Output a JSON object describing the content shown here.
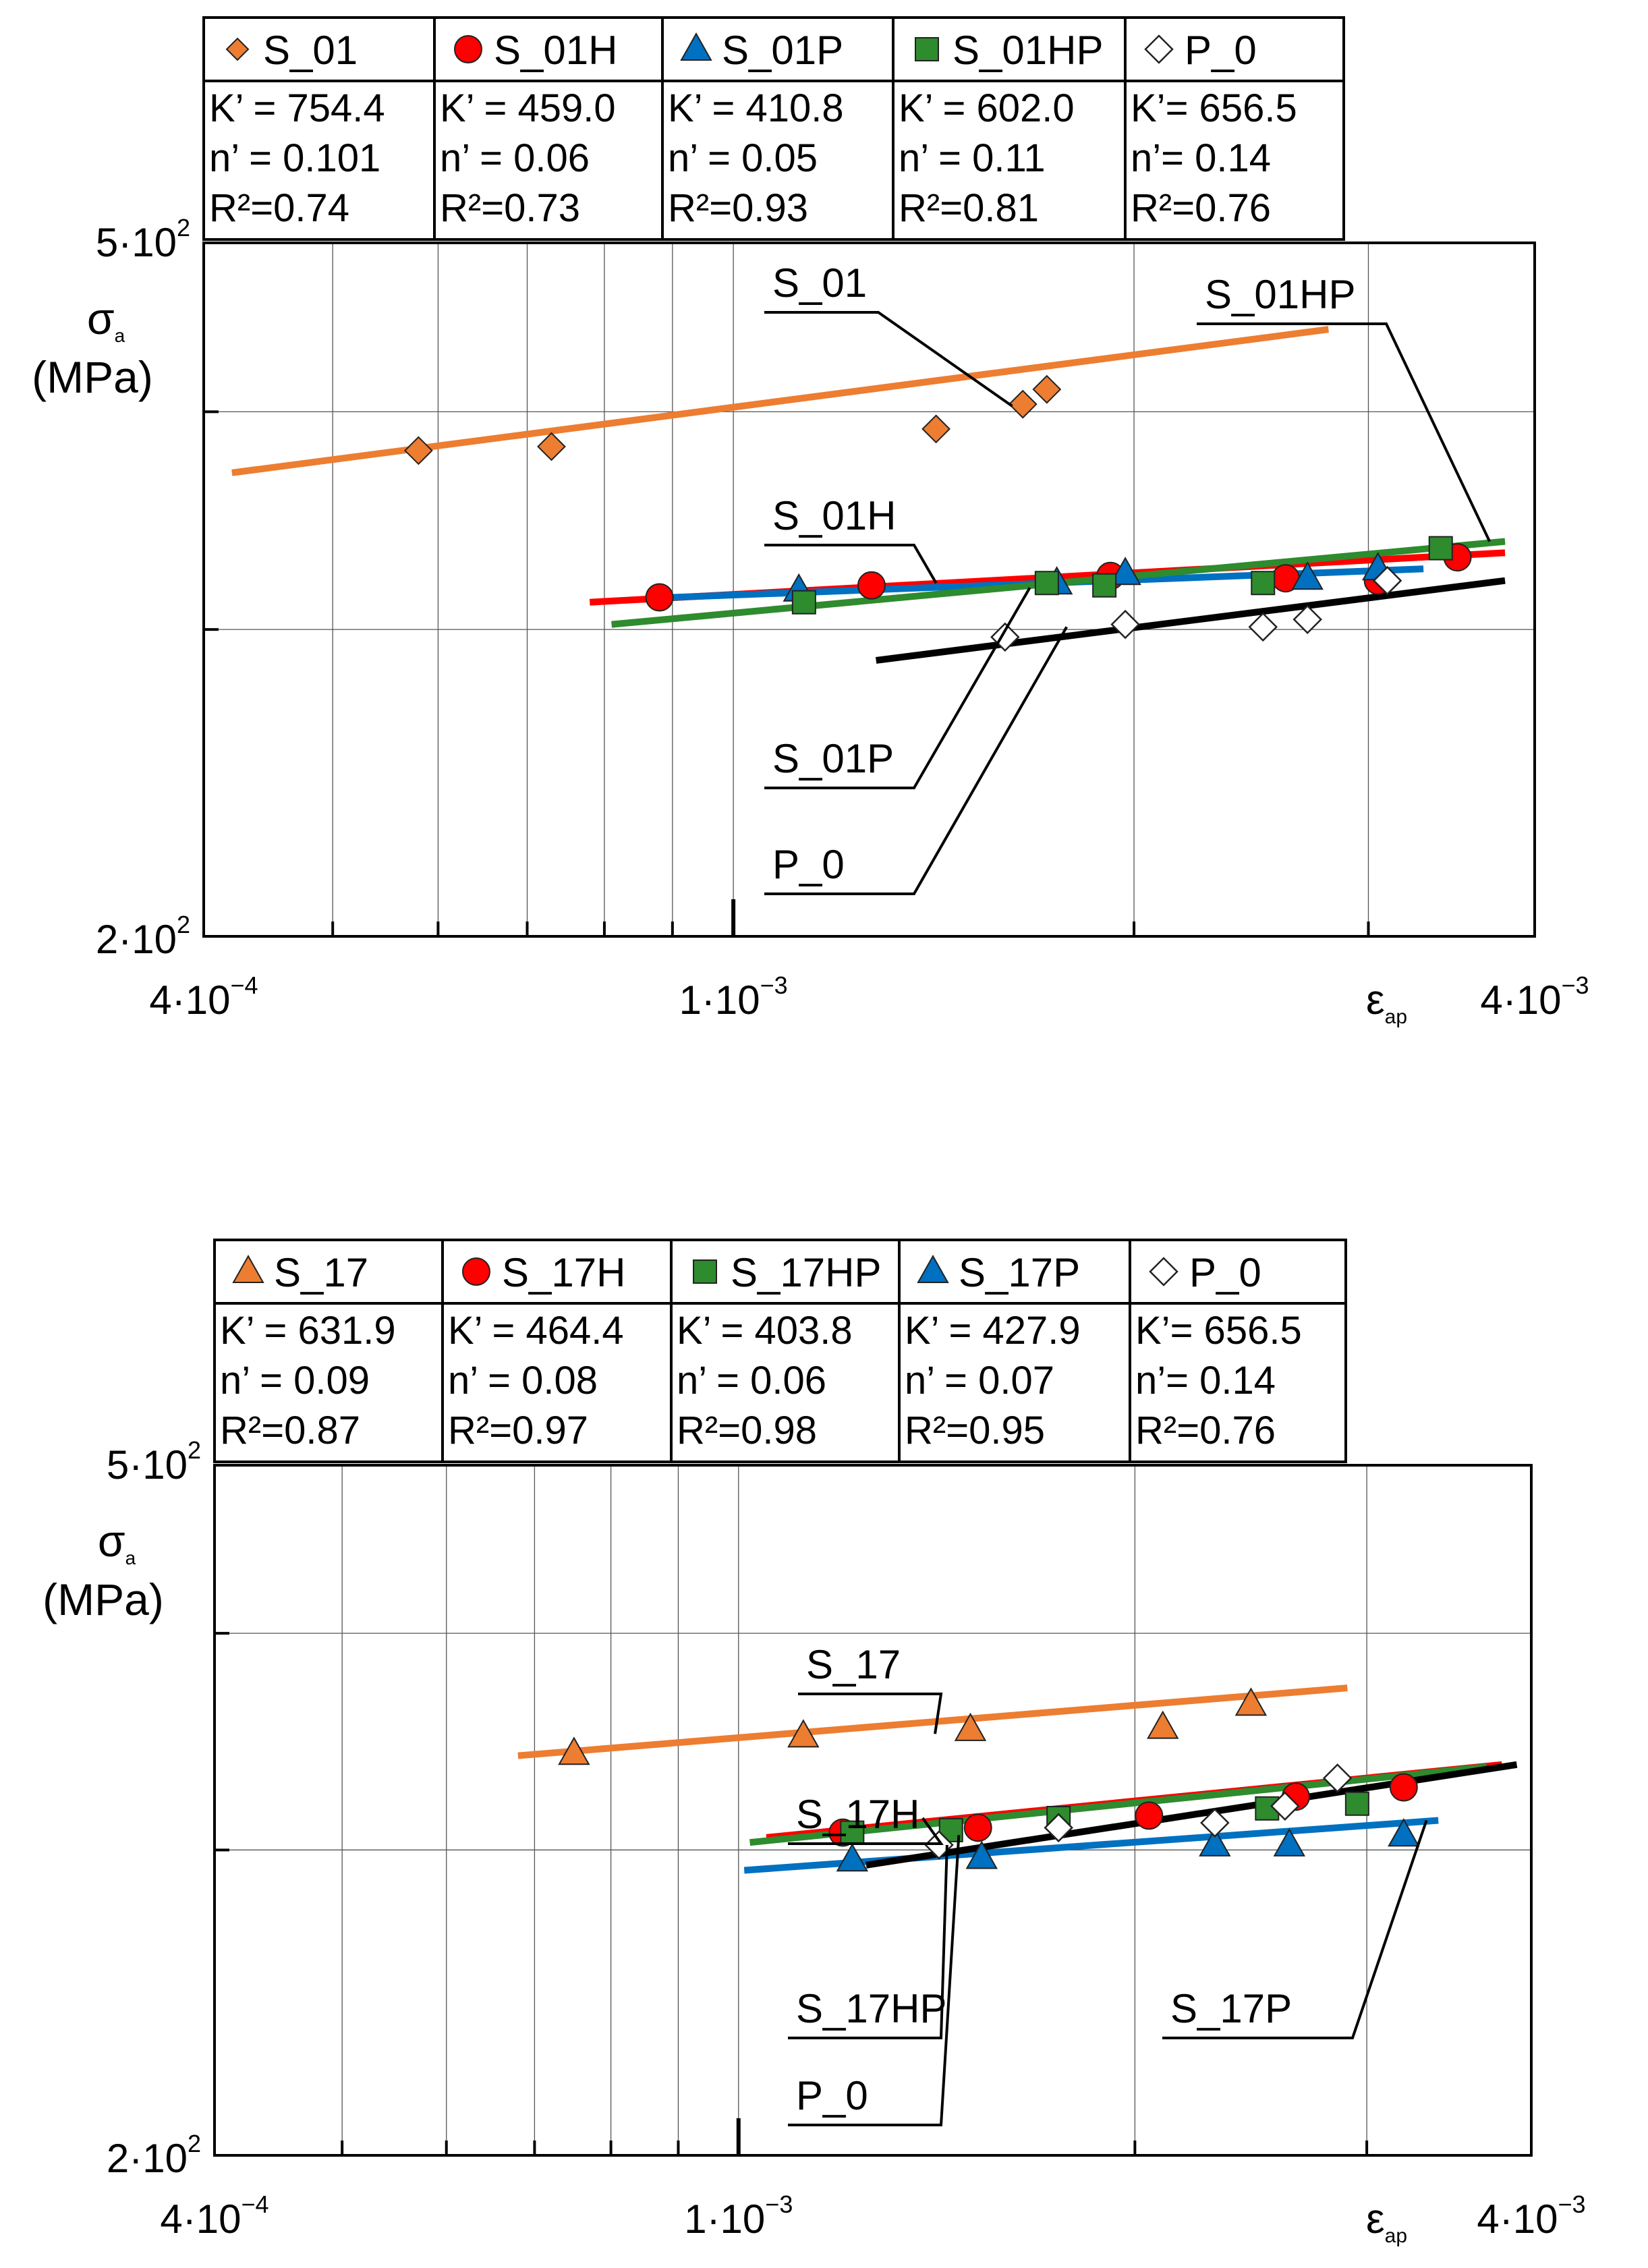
{
  "chart_data": [
    {
      "type": "scatter",
      "scale": "log-log",
      "xlabel": "ε",
      "xlabel_sub": "ap",
      "ylabel": "σ",
      "ylabel_sub": "a",
      "ylabel_unit": "(MPa)",
      "xlim": [
        0.0004,
        0.004
      ],
      "ylim": [
        200,
        500
      ],
      "x_ticks": [
        {
          "value": 0.0004,
          "base": "4·10",
          "exp": "−4"
        },
        {
          "value": 0.001,
          "base": "1·10",
          "exp": "−3"
        },
        {
          "value": 0.004,
          "base": "4·10",
          "exp": "−3"
        }
      ],
      "y_ticks": [
        {
          "value": 200,
          "base": "2·10",
          "exp": "2"
        },
        {
          "value": 500,
          "base": "5·10",
          "exp": "2"
        }
      ],
      "legend": [
        {
          "name": "S_01",
          "marker": "diamond",
          "color": "#ED7D31",
          "k": "K’ = 754.4",
          "n": "n’ = 0.101",
          "r2": "R²=0.74"
        },
        {
          "name": "S_01H",
          "marker": "circle",
          "color": "#FF0000",
          "k": "K’ = 459.0",
          "n": "n’ = 0.06",
          "r2": "R²=0.73"
        },
        {
          "name": "S_01P",
          "marker": "triangle",
          "color": "#0070C0",
          "k": "K’ = 410.8",
          "n": "n’ = 0.05",
          "r2": "R²=0.93"
        },
        {
          "name": "S_01HP",
          "marker": "square",
          "color": "#2E8B2E",
          "k": "K’ = 602.0",
          "n": "n’ = 0.11",
          "r2": "R²=0.81"
        },
        {
          "name": "P_0",
          "marker": "open-diamond",
          "color": "#000000",
          "k": "K’= 656.5",
          "n": "n’= 0.14",
          "r2": "R²=0.76"
        }
      ],
      "series": [
        {
          "name": "S_01",
          "color": "#ED7D31",
          "line": [
            [
              0.00042,
              369
            ],
            [
              0.0028,
              446
            ]
          ],
          "points": [
            [
              0.00058,
              380
            ],
            [
              0.00073,
              382
            ],
            [
              0.00142,
              391
            ],
            [
              0.00165,
              404
            ],
            [
              0.00172,
              412
            ]
          ]
        },
        {
          "name": "S_01H",
          "color": "#FF0000",
          "line": [
            [
              0.00078,
              311
            ],
            [
              0.0038,
              332
            ]
          ],
          "points": [
            [
              0.00088,
              313
            ],
            [
              0.00127,
              318
            ],
            [
              0.00192,
              322
            ],
            [
              0.0026,
              321
            ],
            [
              0.00305,
              320
            ],
            [
              0.0035,
              330
            ]
          ]
        },
        {
          "name": "S_01P",
          "color": "#0070C0",
          "line": [
            [
              0.0009,
              313
            ],
            [
              0.0033,
              325
            ]
          ],
          "points": [
            [
              0.00112,
              316
            ],
            [
              0.00175,
              319
            ],
            [
              0.00197,
              323
            ],
            [
              0.0027,
              321
            ],
            [
              0.00305,
              325
            ]
          ]
        },
        {
          "name": "S_01HP",
          "color": "#2E8B2E",
          "line": [
            [
              0.00081,
              302
            ],
            [
              0.0038,
              337
            ]
          ],
          "points": [
            [
              0.00113,
              311
            ],
            [
              0.00172,
              319
            ],
            [
              0.0019,
              318
            ],
            [
              0.0025,
              319
            ],
            [
              0.0034,
              334
            ]
          ]
        },
        {
          "name": "P_0",
          "color": "#000000",
          "line": [
            [
              0.00128,
              288
            ],
            [
              0.0038,
              320
            ]
          ],
          "points": [
            [
              0.0016,
              297
            ],
            [
              0.00197,
              302
            ],
            [
              0.0025,
              301
            ],
            [
              0.0027,
              304
            ],
            [
              0.0031,
              320
            ]
          ]
        }
      ],
      "annotations": [
        {
          "label": "S_01",
          "target": [
            0.00162,
            403
          ]
        },
        {
          "label": "S_01HP",
          "target": [
            0.0037,
            337
          ]
        },
        {
          "label": "S_01H",
          "target": [
            0.00142,
            319
          ]
        },
        {
          "label": "S_01P",
          "target": [
            0.00167,
            317
          ]
        },
        {
          "label": "P_0",
          "target": [
            0.00178,
            301
          ]
        }
      ]
    },
    {
      "type": "scatter",
      "scale": "log-log",
      "xlabel": "ε",
      "xlabel_sub": "ap",
      "ylabel": "σ",
      "ylabel_sub": "a",
      "ylabel_unit": "(MPa)",
      "xlim": [
        0.0004,
        0.004
      ],
      "ylim": [
        200,
        500
      ],
      "x_ticks": [
        {
          "value": 0.0004,
          "base": "4·10",
          "exp": "−4"
        },
        {
          "value": 0.001,
          "base": "1·10",
          "exp": "−3"
        },
        {
          "value": 0.004,
          "base": "4·10",
          "exp": "−3"
        }
      ],
      "y_ticks": [
        {
          "value": 200,
          "base": "2·10",
          "exp": "2"
        },
        {
          "value": 500,
          "base": "5·10",
          "exp": "2"
        }
      ],
      "legend": [
        {
          "name": "S_17",
          "marker": "triangle",
          "color": "#ED7D31",
          "k": "K’ = 631.9",
          "n": "n’ = 0.09",
          "r2": "R²=0.87"
        },
        {
          "name": "S_17H",
          "marker": "circle",
          "color": "#FF0000",
          "k": "K’ = 464.4",
          "n": "n’ = 0.08",
          "r2": "R²=0.97"
        },
        {
          "name": "S_17HP",
          "marker": "square",
          "color": "#2E8B2E",
          "k": "K’ = 403.8",
          "n": "n’ = 0.06",
          "r2": "R²=0.98"
        },
        {
          "name": "S_17P",
          "marker": "triangle",
          "color": "#0070C0",
          "k": "K’ = 427.9",
          "n": "n’ = 0.07",
          "r2": "R²=0.95"
        },
        {
          "name": "P_0",
          "marker": "open-diamond",
          "color": "#000000",
          "k": "K’= 656.5",
          "n": "n’= 0.14",
          "r2": "R²=0.76"
        }
      ],
      "series": [
        {
          "name": "S_17",
          "color": "#ED7D31",
          "line": [
            [
              0.00068,
              340
            ],
            [
              0.0029,
              372
            ]
          ],
          "points": [
            [
              0.00075,
              341
            ],
            [
              0.00112,
              349
            ],
            [
              0.0015,
              352
            ],
            [
              0.0021,
              353
            ],
            [
              0.00245,
              364
            ]
          ]
        },
        {
          "name": "S_17H",
          "color": "#FF0000",
          "line": [
            [
              0.00105,
              305
            ],
            [
              0.0038,
              336
            ]
          ],
          "points": [
            [
              0.0012,
              307
            ],
            [
              0.00152,
              309
            ],
            [
              0.00205,
              314
            ],
            [
              0.00265,
              322
            ],
            [
              0.0032,
              326
            ]
          ]
        },
        {
          "name": "S_17HP",
          "color": "#2E8B2E",
          "line": [
            [
              0.00102,
              303
            ],
            [
              0.0037,
              335
            ]
          ],
          "points": [
            [
              0.00122,
              307
            ],
            [
              0.00145,
              308
            ],
            [
              0.00175,
              313
            ],
            [
              0.00252,
              317
            ],
            [
              0.00295,
              319
            ]
          ]
        },
        {
          "name": "S_17P",
          "color": "#0070C0",
          "line": [
            [
              0.00101,
              292
            ],
            [
              0.0034,
              312
            ]
          ],
          "points": [
            [
              0.00122,
              296
            ],
            [
              0.00153,
              297
            ],
            [
              0.0023,
              302
            ],
            [
              0.00262,
              302
            ],
            [
              0.0032,
              306
            ]
          ]
        },
        {
          "name": "P_0",
          "color": "#000000",
          "line": [
            [
              0.00125,
              294
            ],
            [
              0.0039,
              336
            ]
          ],
          "points": [
            [
              0.00142,
              302
            ],
            [
              0.00175,
              309
            ],
            [
              0.0023,
              311
            ],
            [
              0.0026,
              318
            ],
            [
              0.00285,
              330
            ]
          ]
        }
      ],
      "annotations": [
        {
          "label": "S_17",
          "target": [
            0.00141,
            350
          ]
        },
        {
          "label": "S_17H",
          "target": [
            0.00138,
            313
          ]
        },
        {
          "label": "S_17HP",
          "target": [
            0.00144,
            302
          ]
        },
        {
          "label": "P_0",
          "target": [
            0.00147,
            306
          ]
        },
        {
          "label": "S_17P",
          "target": [
            0.00333,
            312
          ]
        }
      ]
    }
  ]
}
